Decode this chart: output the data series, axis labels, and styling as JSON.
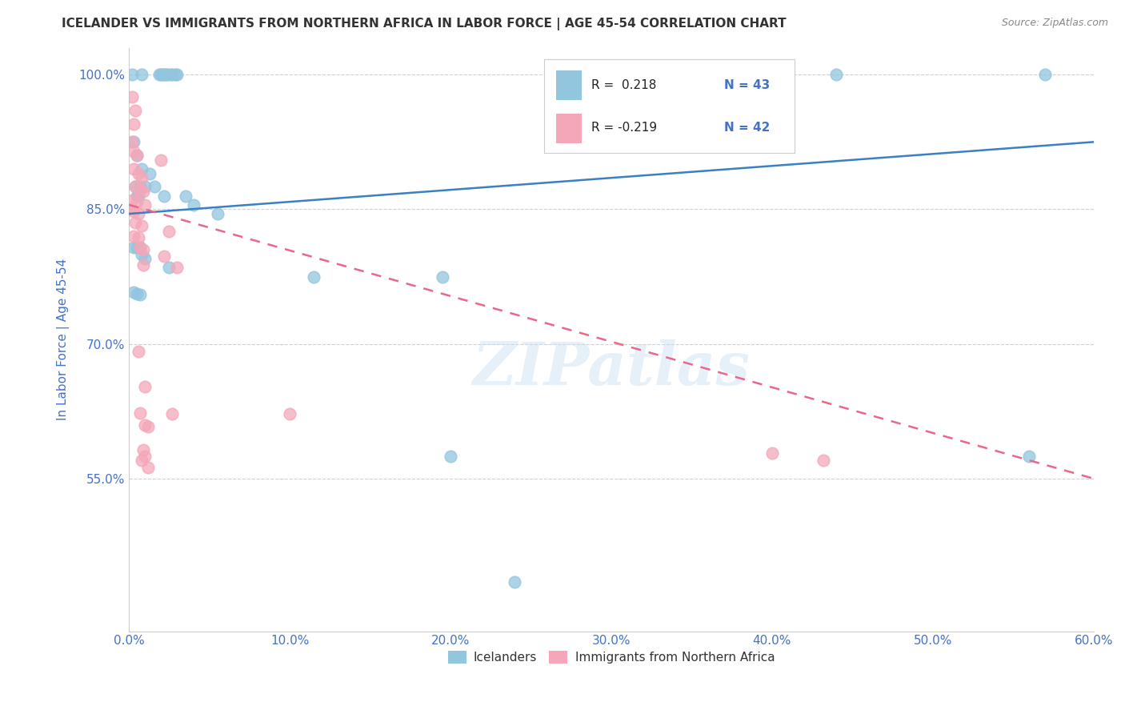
{
  "title": "ICELANDER VS IMMIGRANTS FROM NORTHERN AFRICA IN LABOR FORCE | AGE 45-54 CORRELATION CHART",
  "source": "Source: ZipAtlas.com",
  "ylabel": "In Labor Force | Age 45-54",
  "xlim": [
    0.0,
    0.6
  ],
  "ylim": [
    0.38,
    1.03
  ],
  "xticks": [
    0.0,
    0.1,
    0.2,
    0.3,
    0.4,
    0.5,
    0.6
  ],
  "xticklabels": [
    "0.0%",
    "10.0%",
    "20.0%",
    "30.0%",
    "40.0%",
    "50.0%",
    "60.0%"
  ],
  "yticks": [
    0.55,
    0.7,
    0.85,
    1.0
  ],
  "yticklabels": [
    "55.0%",
    "70.0%",
    "85.0%",
    "100.0%"
  ],
  "watermark": "ZIPatlas",
  "blue_color": "#92c5de",
  "pink_color": "#f4a7b9",
  "blue_line_color": "#3b7fc4",
  "pink_line_color": "#e8688a",
  "grid_color": "#d0d0d0",
  "title_color": "#333333",
  "tick_color": "#4472c4",
  "blue_points": [
    [
      0.002,
      1.0
    ],
    [
      0.008,
      1.0
    ],
    [
      0.019,
      1.0
    ],
    [
      0.02,
      1.0
    ],
    [
      0.021,
      1.0
    ],
    [
      0.022,
      1.0
    ],
    [
      0.023,
      1.0
    ],
    [
      0.024,
      1.0
    ],
    [
      0.026,
      1.0
    ],
    [
      0.027,
      1.0
    ],
    [
      0.029,
      1.0
    ],
    [
      0.03,
      1.0
    ],
    [
      0.44,
      1.0
    ],
    [
      0.57,
      1.0
    ],
    [
      0.003,
      0.925
    ],
    [
      0.005,
      0.91
    ],
    [
      0.008,
      0.895
    ],
    [
      0.013,
      0.89
    ],
    [
      0.004,
      0.875
    ],
    [
      0.007,
      0.875
    ],
    [
      0.01,
      0.875
    ],
    [
      0.016,
      0.875
    ],
    [
      0.005,
      0.865
    ],
    [
      0.006,
      0.865
    ],
    [
      0.022,
      0.865
    ],
    [
      0.035,
      0.865
    ],
    [
      0.04,
      0.855
    ],
    [
      0.055,
      0.845
    ],
    [
      0.003,
      0.808
    ],
    [
      0.005,
      0.808
    ],
    [
      0.007,
      0.808
    ],
    [
      0.008,
      0.8
    ],
    [
      0.01,
      0.795
    ],
    [
      0.025,
      0.785
    ],
    [
      0.115,
      0.775
    ],
    [
      0.195,
      0.775
    ],
    [
      0.003,
      0.758
    ],
    [
      0.005,
      0.756
    ],
    [
      0.007,
      0.755
    ],
    [
      0.2,
      0.575
    ],
    [
      0.56,
      0.575
    ],
    [
      0.24,
      0.435
    ]
  ],
  "pink_points": [
    [
      0.002,
      0.975
    ],
    [
      0.004,
      0.96
    ],
    [
      0.003,
      0.945
    ],
    [
      0.002,
      0.925
    ],
    [
      0.003,
      0.915
    ],
    [
      0.005,
      0.91
    ],
    [
      0.02,
      0.905
    ],
    [
      0.003,
      0.895
    ],
    [
      0.006,
      0.89
    ],
    [
      0.008,
      0.885
    ],
    [
      0.004,
      0.875
    ],
    [
      0.007,
      0.872
    ],
    [
      0.009,
      0.87
    ],
    [
      0.002,
      0.86
    ],
    [
      0.005,
      0.858
    ],
    [
      0.01,
      0.855
    ],
    [
      0.001,
      0.85
    ],
    [
      0.003,
      0.848
    ],
    [
      0.006,
      0.845
    ],
    [
      0.004,
      0.835
    ],
    [
      0.008,
      0.832
    ],
    [
      0.025,
      0.825
    ],
    [
      0.003,
      0.82
    ],
    [
      0.006,
      0.818
    ],
    [
      0.007,
      0.808
    ],
    [
      0.009,
      0.805
    ],
    [
      0.022,
      0.798
    ],
    [
      0.009,
      0.788
    ],
    [
      0.03,
      0.785
    ],
    [
      0.006,
      0.692
    ],
    [
      0.01,
      0.652
    ],
    [
      0.007,
      0.623
    ],
    [
      0.027,
      0.622
    ],
    [
      0.1,
      0.622
    ],
    [
      0.01,
      0.61
    ],
    [
      0.012,
      0.608
    ],
    [
      0.009,
      0.582
    ],
    [
      0.008,
      0.57
    ],
    [
      0.01,
      0.575
    ],
    [
      0.012,
      0.562
    ],
    [
      0.4,
      0.578
    ],
    [
      0.432,
      0.57
    ]
  ]
}
